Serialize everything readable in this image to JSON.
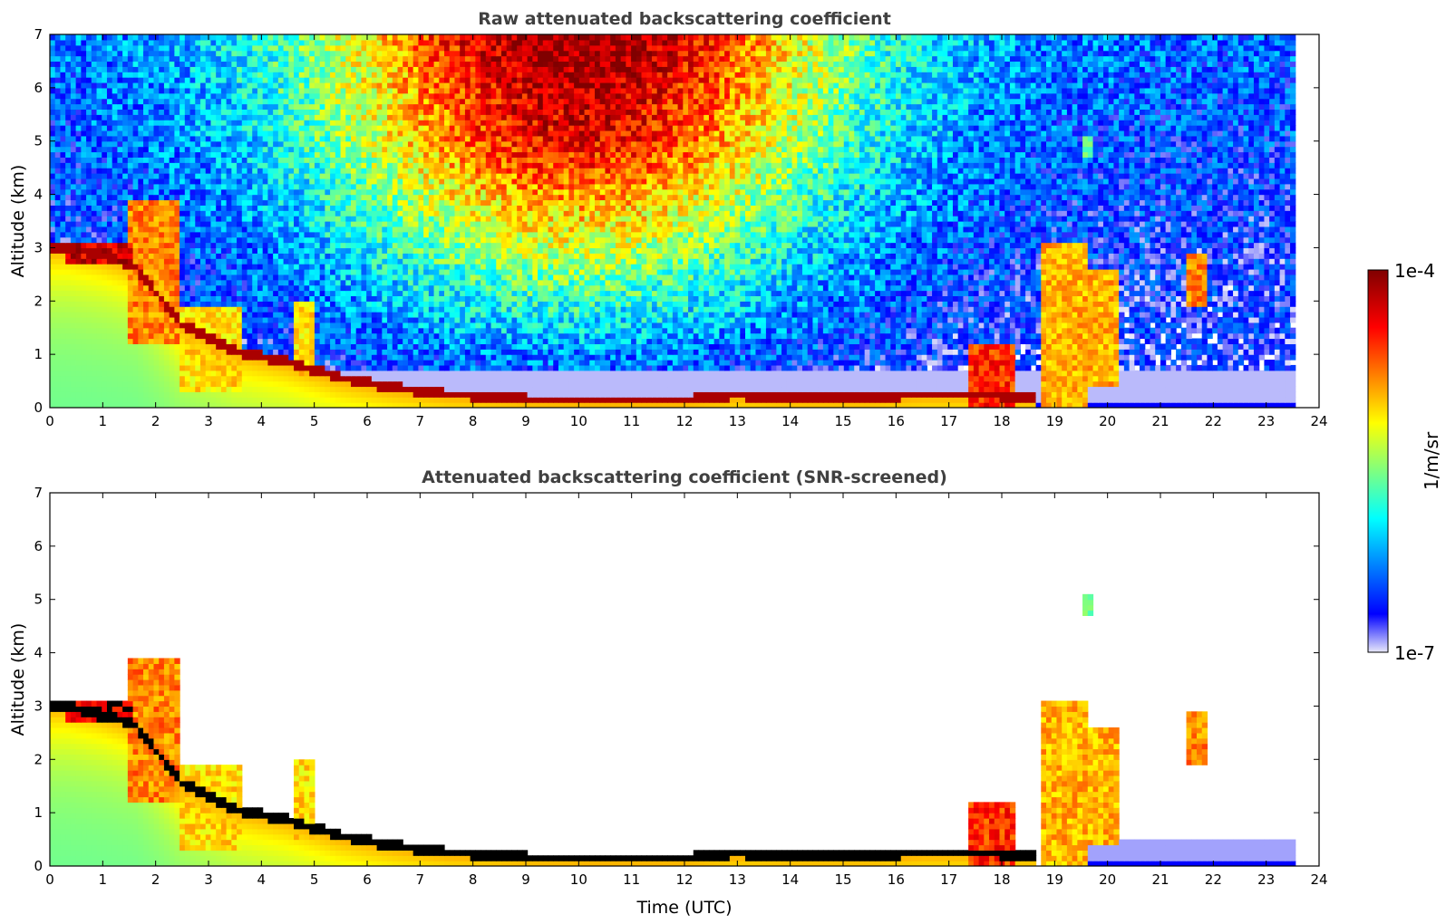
{
  "chart_data": [
    {
      "type": "heatmap",
      "title": "Raw attenuated backscattering coefficient",
      "xlabel": "",
      "ylabel": "Altitude (km)",
      "xlim": [
        0,
        24
      ],
      "ylim": [
        0,
        7
      ],
      "xticks": [
        "0",
        "1",
        "2",
        "3",
        "4",
        "5",
        "6",
        "7",
        "8",
        "9",
        "10",
        "11",
        "12",
        "13",
        "14",
        "15",
        "16",
        "17",
        "18",
        "19",
        "20",
        "21",
        "22",
        "23",
        "24"
      ],
      "yticks": [
        "0",
        "1",
        "2",
        "3",
        "4",
        "5",
        "6",
        "7"
      ],
      "data_extent_hours": [
        0,
        23.55
      ],
      "boundary_layer_top_km": {
        "x": [
          0.3,
          1.0,
          1.6,
          2.5,
          3.5,
          4.5,
          5.5,
          6.5,
          7.5,
          9.0,
          10.5,
          12.0,
          13.0,
          14.0,
          15.5,
          16.5,
          17.5,
          18.2
        ],
        "y": [
          3.05,
          2.9,
          2.7,
          1.6,
          1.1,
          0.9,
          0.6,
          0.42,
          0.3,
          0.2,
          0.17,
          0.18,
          0.28,
          0.22,
          0.22,
          0.3,
          0.3,
          0.25
        ]
      },
      "cloud_features": [
        {
          "x": [
            0.25,
            1.6
          ],
          "y": [
            2.7,
            3.1
          ],
          "level": 1.0
        },
        {
          "x": [
            1.5,
            2.5
          ],
          "y": [
            1.2,
            3.9
          ],
          "level": 0.8
        },
        {
          "x": [
            2.5,
            3.6
          ],
          "y": [
            0.3,
            1.9
          ],
          "level": 0.7
        },
        {
          "x": [
            4.6,
            5.0
          ],
          "y": [
            0.5,
            2.0
          ],
          "level": 0.7
        },
        {
          "x": [
            17.4,
            18.3
          ],
          "y": [
            0.0,
            1.2
          ],
          "level": 0.9
        },
        {
          "x": [
            18.7,
            19.6
          ],
          "y": [
            0.0,
            3.1
          ],
          "level": 0.75
        },
        {
          "x": [
            19.5,
            20.2
          ],
          "y": [
            0.4,
            2.6
          ],
          "level": 0.75
        },
        {
          "x": [
            19.55,
            19.7
          ],
          "y": [
            4.7,
            5.1
          ],
          "level": 0.5
        },
        {
          "x": [
            21.5,
            21.9
          ],
          "y": [
            1.9,
            2.9
          ],
          "level": 0.8
        }
      ]
    },
    {
      "type": "heatmap",
      "title": "Attenuated backscattering coefficient (SNR-screened)",
      "xlabel": "Time (UTC)",
      "ylabel": "Altitude (km)",
      "xlim": [
        0,
        24
      ],
      "ylim": [
        0,
        7
      ],
      "xticks": [
        "0",
        "1",
        "2",
        "3",
        "4",
        "5",
        "6",
        "7",
        "8",
        "9",
        "10",
        "11",
        "12",
        "13",
        "14",
        "15",
        "16",
        "17",
        "18",
        "19",
        "20",
        "21",
        "22",
        "23",
        "24"
      ],
      "yticks": [
        "0",
        "1",
        "2",
        "3",
        "4",
        "5",
        "6",
        "7"
      ],
      "data_extent_hours": [
        0,
        23.55
      ]
    }
  ],
  "colorbar": {
    "label": "1/m/sr",
    "max_label": "1e-4",
    "min_label": "1e-7",
    "scale": "log",
    "colors": [
      "#e8e8fa",
      "#0000ff",
      "#00ffff",
      "#ffff00",
      "#ff0000",
      "#800000"
    ]
  }
}
